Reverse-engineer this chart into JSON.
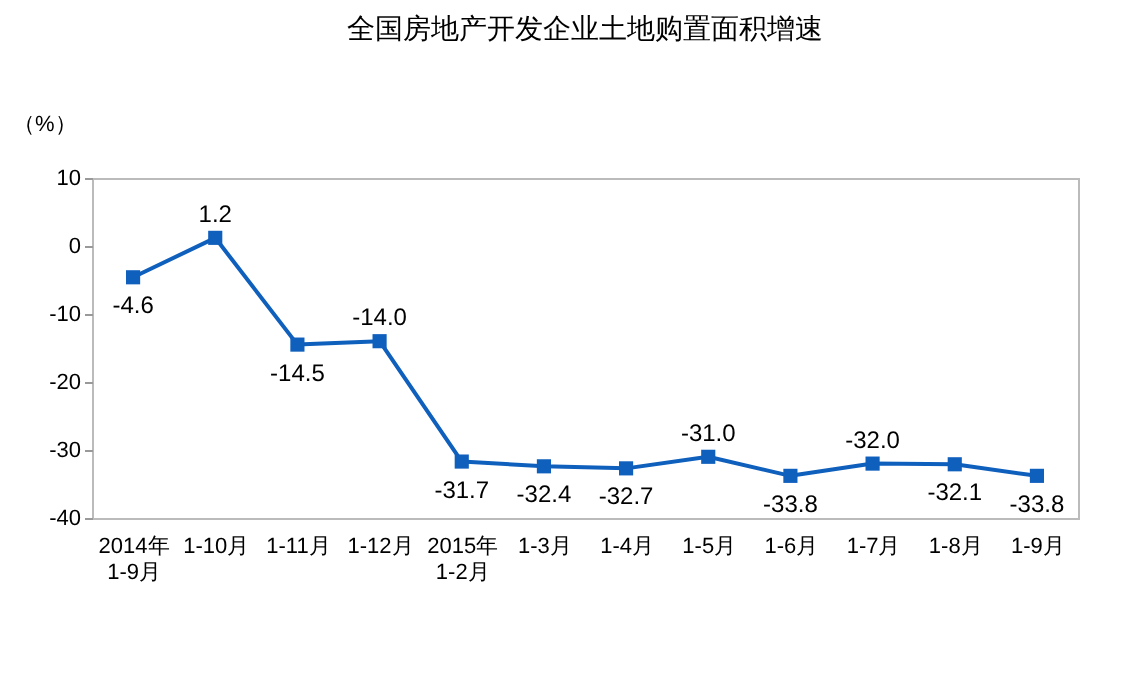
{
  "chart_data": {
    "type": "line",
    "title": "全国房地产开发企业土地购置面积增速",
    "ylabel": "（%）",
    "categories": [
      "2014年\n1-9月",
      "1-10月",
      "1-11月",
      "1-12月",
      "2015年\n1-2月",
      "1-3月",
      "1-4月",
      "1-5月",
      "1-6月",
      "1-7月",
      "1-8月",
      "1-9月"
    ],
    "series": [
      {
        "color": "#0f5fbd",
        "values": [
          -4.6,
          1.2,
          -14.5,
          -14.0,
          -31.7,
          -32.4,
          -32.7,
          -31.0,
          -33.8,
          -32.0,
          -32.1,
          -33.8
        ]
      }
    ],
    "ylim": [
      -40,
      10
    ],
    "yticks": [
      -40,
      -30,
      -20,
      -10,
      0,
      10
    ],
    "grid": false,
    "legend": false,
    "marker": "square",
    "value_labels": [
      "-4.6",
      "1.2",
      "-14.5",
      "-14.0",
      "-31.7",
      "-32.4",
      "-32.7",
      "-31.0",
      "-33.8",
      "-32.0",
      "-32.1",
      "-33.8"
    ]
  }
}
